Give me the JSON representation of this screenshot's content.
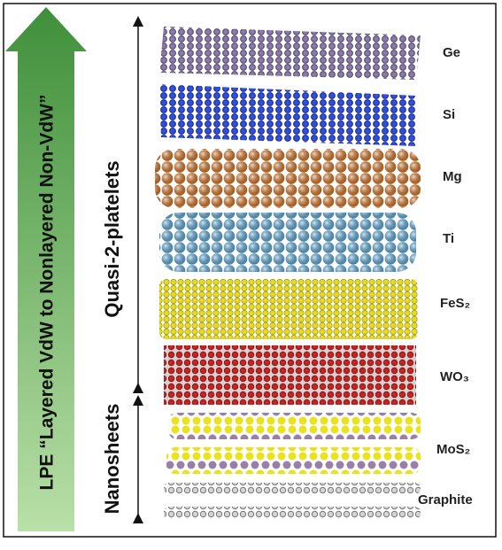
{
  "arrow_label": "LPE “Layered VdW to Nonlayered Non-VdW”",
  "groups": [
    {
      "label": "Quasi-2-platelets"
    },
    {
      "label": "Nanosheets"
    }
  ],
  "layers": [
    {
      "label": "Ge"
    },
    {
      "label": "Si"
    },
    {
      "label": "Mg"
    },
    {
      "label": "Ti"
    },
    {
      "label": "FeS₂"
    },
    {
      "label": "WO₃"
    },
    {
      "label": "MoS₂"
    },
    {
      "label": "Graphite"
    }
  ]
}
